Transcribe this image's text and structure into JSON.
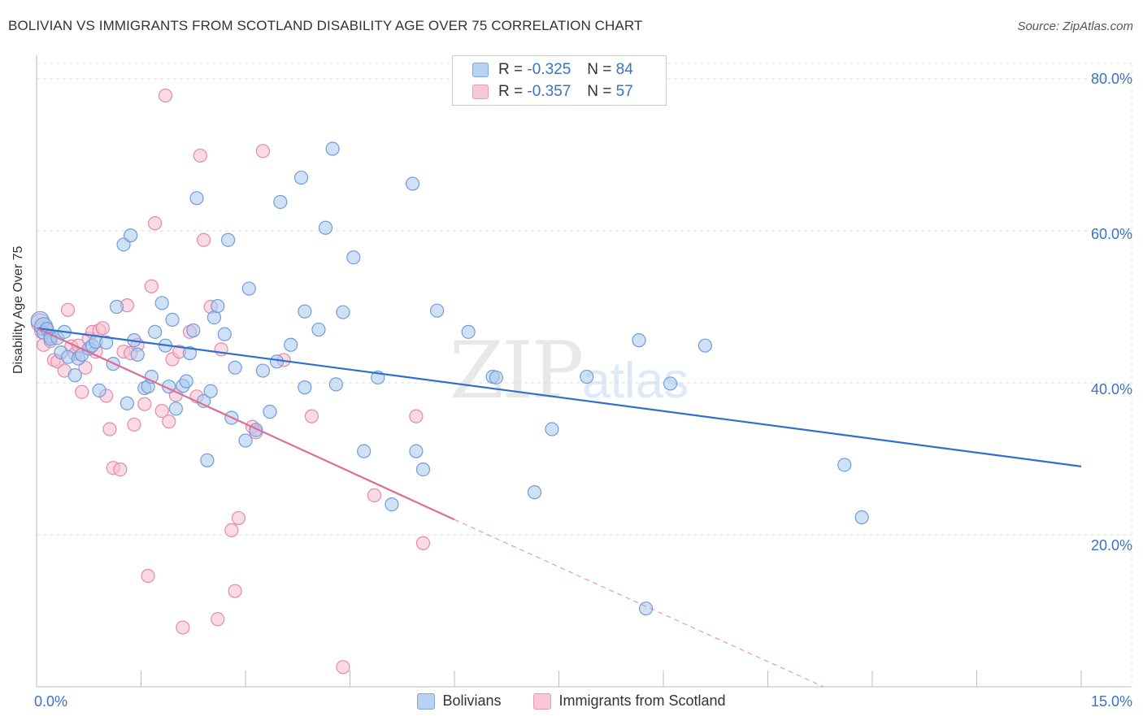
{
  "title": "BOLIVIAN VS IMMIGRANTS FROM SCOTLAND DISABILITY AGE OVER 75 CORRELATION CHART",
  "source": "Source: ZipAtlas.com",
  "watermark": {
    "zip": "ZIP",
    "atlas": "atlas"
  },
  "colors": {
    "blue_fill": "#a9c8ef",
    "blue_stroke": "#6f9ddb",
    "blue_line": "#2f6fce",
    "pink_fill": "#f6bdd0",
    "pink_stroke": "#e48aa8",
    "pink_line": "#e06c93",
    "tick_text": "#3a72c8"
  },
  "stats": [
    {
      "swatch": "blue",
      "r_label": "R =",
      "r_value": "-0.325",
      "n_label": "N =",
      "n_value": "84"
    },
    {
      "swatch": "pink",
      "r_label": "R =",
      "r_value": "-0.357",
      "n_label": "N =",
      "n_value": "57"
    }
  ],
  "legend": {
    "bolivians": "Bolivians",
    "scotland": "Immigrants from Scotland"
  },
  "chart_data": {
    "type": "scatter",
    "title": "BOLIVIAN VS IMMIGRANTS FROM SCOTLAND DISABILITY AGE OVER 75 CORRELATION CHART",
    "xlabel": "",
    "ylabel": "Disability Age Over 75",
    "xlim": [
      0,
      15
    ],
    "ylim": [
      0,
      80
    ],
    "x_tick_labels": [
      "0.0%",
      "15.0%"
    ],
    "y_ticks": [
      20,
      40,
      60,
      80
    ],
    "y_tick_labels": [
      "20.0%",
      "40.0%",
      "60.0%",
      "80.0%"
    ],
    "grid": true,
    "legend_position": "bottom",
    "series": [
      {
        "name": "Bolivians",
        "color": "#a9c8ef",
        "trend": {
          "x": [
            0.0,
            15.0
          ],
          "y": [
            47.2,
            29.0
          ],
          "dashed_extension_to": null
        },
        "points": [
          [
            0.05,
            48.2
          ],
          [
            0.1,
            47.4
          ],
          [
            0.1,
            46.6
          ],
          [
            0.15,
            47.1
          ],
          [
            0.2,
            46.1
          ],
          [
            0.2,
            45.8
          ],
          [
            0.3,
            45.9
          ],
          [
            0.35,
            44.0
          ],
          [
            0.4,
            46.7
          ],
          [
            0.45,
            43.4
          ],
          [
            0.55,
            41.0
          ],
          [
            0.6,
            43.2
          ],
          [
            0.65,
            43.7
          ],
          [
            0.75,
            44.5
          ],
          [
            0.8,
            44.9
          ],
          [
            0.85,
            45.4
          ],
          [
            0.9,
            39.0
          ],
          [
            1.0,
            45.3
          ],
          [
            1.1,
            42.5
          ],
          [
            1.15,
            50.0
          ],
          [
            1.25,
            58.2
          ],
          [
            1.3,
            37.3
          ],
          [
            1.35,
            59.4
          ],
          [
            1.4,
            45.6
          ],
          [
            1.45,
            43.7
          ],
          [
            1.55,
            39.3
          ],
          [
            1.6,
            39.5
          ],
          [
            1.65,
            40.8
          ],
          [
            1.7,
            46.7
          ],
          [
            1.8,
            50.5
          ],
          [
            1.85,
            44.9
          ],
          [
            1.9,
            39.5
          ],
          [
            1.95,
            48.3
          ],
          [
            2.0,
            36.6
          ],
          [
            2.1,
            39.6
          ],
          [
            2.15,
            40.2
          ],
          [
            2.2,
            43.9
          ],
          [
            2.25,
            46.9
          ],
          [
            2.3,
            64.3
          ],
          [
            2.4,
            37.6
          ],
          [
            2.45,
            29.8
          ],
          [
            2.5,
            38.9
          ],
          [
            2.55,
            48.6
          ],
          [
            2.6,
            50.1
          ],
          [
            2.7,
            46.4
          ],
          [
            2.75,
            58.8
          ],
          [
            2.8,
            35.4
          ],
          [
            2.85,
            42.0
          ],
          [
            3.0,
            32.4
          ],
          [
            3.05,
            52.4
          ],
          [
            3.15,
            33.8
          ],
          [
            3.25,
            41.6
          ],
          [
            3.35,
            36.2
          ],
          [
            3.45,
            42.8
          ],
          [
            3.5,
            63.8
          ],
          [
            3.65,
            45.0
          ],
          [
            3.8,
            67.0
          ],
          [
            3.85,
            39.4
          ],
          [
            3.85,
            49.4
          ],
          [
            4.05,
            47.0
          ],
          [
            4.15,
            60.4
          ],
          [
            4.25,
            70.8
          ],
          [
            4.3,
            39.8
          ],
          [
            4.4,
            49.3
          ],
          [
            4.55,
            56.5
          ],
          [
            4.7,
            31.0
          ],
          [
            4.9,
            40.7
          ],
          [
            5.1,
            24.0
          ],
          [
            5.4,
            66.2
          ],
          [
            5.45,
            31.0
          ],
          [
            5.55,
            28.6
          ],
          [
            5.75,
            49.5
          ],
          [
            6.2,
            46.7
          ],
          [
            6.55,
            40.8
          ],
          [
            6.6,
            40.7
          ],
          [
            7.15,
            25.6
          ],
          [
            7.4,
            33.9
          ],
          [
            7.9,
            40.8
          ],
          [
            8.65,
            45.6
          ],
          [
            8.75,
            10.3
          ],
          [
            9.1,
            39.9
          ],
          [
            9.6,
            44.9
          ],
          [
            11.6,
            29.2
          ],
          [
            11.85,
            22.3
          ]
        ]
      },
      {
        "name": "Immigrants from Scotland",
        "color": "#f6bdd0",
        "trend": {
          "x": [
            0.0,
            6.0
          ],
          "y": [
            47.2,
            22.0
          ],
          "dashed_extension_to": [
            11.3,
            0.0
          ]
        },
        "points": [
          [
            0.05,
            47.9
          ],
          [
            0.1,
            46.9
          ],
          [
            0.1,
            45.0
          ],
          [
            0.2,
            45.5
          ],
          [
            0.25,
            43.0
          ],
          [
            0.3,
            42.8
          ],
          [
            0.4,
            41.6
          ],
          [
            0.45,
            49.6
          ],
          [
            0.5,
            44.8
          ],
          [
            0.55,
            43.8
          ],
          [
            0.6,
            44.9
          ],
          [
            0.65,
            38.8
          ],
          [
            0.7,
            42.0
          ],
          [
            0.75,
            45.8
          ],
          [
            0.8,
            46.7
          ],
          [
            0.85,
            44.1
          ],
          [
            0.9,
            46.9
          ],
          [
            0.95,
            47.2
          ],
          [
            1.0,
            38.3
          ],
          [
            1.05,
            33.9
          ],
          [
            1.1,
            28.8
          ],
          [
            1.2,
            28.6
          ],
          [
            1.25,
            44.1
          ],
          [
            1.3,
            50.2
          ],
          [
            1.35,
            43.9
          ],
          [
            1.4,
            34.5
          ],
          [
            1.45,
            45.0
          ],
          [
            1.55,
            37.2
          ],
          [
            1.6,
            14.6
          ],
          [
            1.65,
            52.7
          ],
          [
            1.7,
            61.0
          ],
          [
            1.8,
            36.3
          ],
          [
            1.85,
            77.8
          ],
          [
            1.9,
            34.9
          ],
          [
            1.95,
            43.1
          ],
          [
            2.0,
            38.4
          ],
          [
            2.05,
            44.1
          ],
          [
            2.1,
            7.8
          ],
          [
            2.2,
            46.7
          ],
          [
            2.3,
            38.2
          ],
          [
            2.35,
            69.9
          ],
          [
            2.4,
            58.8
          ],
          [
            2.5,
            50.0
          ],
          [
            2.6,
            8.9
          ],
          [
            2.65,
            44.4
          ],
          [
            2.8,
            20.6
          ],
          [
            2.85,
            12.6
          ],
          [
            2.9,
            22.2
          ],
          [
            3.1,
            34.2
          ],
          [
            3.15,
            33.5
          ],
          [
            3.25,
            70.5
          ],
          [
            3.55,
            43.0
          ],
          [
            3.95,
            35.6
          ],
          [
            4.4,
            2.6
          ],
          [
            4.85,
            25.2
          ],
          [
            5.45,
            35.6
          ],
          [
            5.55,
            18.9
          ]
        ]
      }
    ]
  }
}
